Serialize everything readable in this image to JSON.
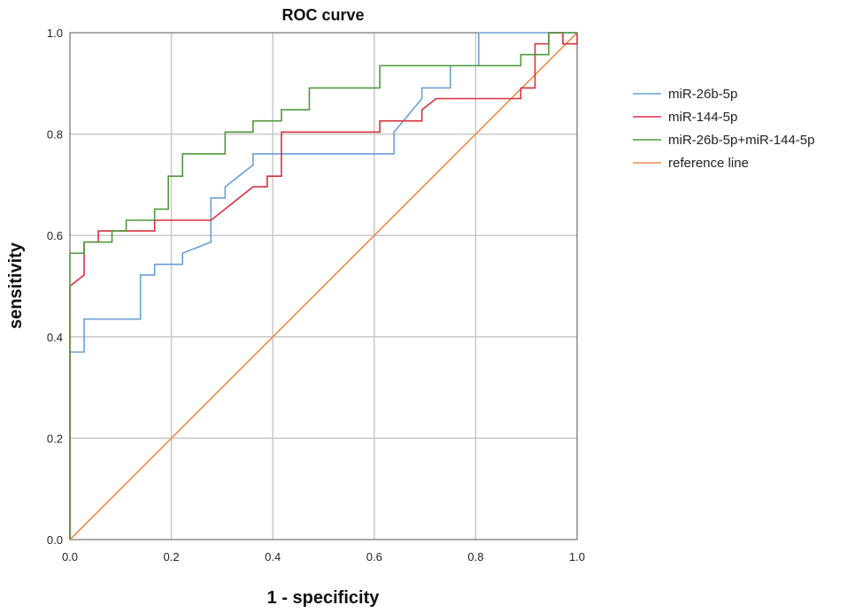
{
  "chart_data": {
    "type": "line",
    "title": "ROC curve",
    "xlabel": "1 - specificity",
    "ylabel": "sensitivity",
    "xlim": [
      0,
      1
    ],
    "ylim": [
      0,
      1
    ],
    "grid": true,
    "legend_position": "right",
    "x_ticks": [
      "0.0",
      "0.2",
      "0.4",
      "0.6",
      "0.8",
      "1.0"
    ],
    "y_ticks": [
      "0.0",
      "0.2",
      "0.4",
      "0.6",
      "0.8",
      "1.0"
    ],
    "series": [
      {
        "name": "miR-26b-5p",
        "color": "#6a9fd8",
        "points": [
          [
            0,
            0
          ],
          [
            0,
            0.37
          ],
          [
            0.028,
            0.37
          ],
          [
            0.028,
            0.435
          ],
          [
            0.139,
            0.435
          ],
          [
            0.139,
            0.522
          ],
          [
            0.167,
            0.522
          ],
          [
            0.167,
            0.543
          ],
          [
            0.222,
            0.543
          ],
          [
            0.222,
            0.565
          ],
          [
            0.278,
            0.587
          ],
          [
            0.278,
            0.674
          ],
          [
            0.306,
            0.674
          ],
          [
            0.306,
            0.696
          ],
          [
            0.361,
            0.739
          ],
          [
            0.361,
            0.761
          ],
          [
            0.639,
            0.761
          ],
          [
            0.639,
            0.804
          ],
          [
            0.694,
            0.87
          ],
          [
            0.694,
            0.891
          ],
          [
            0.75,
            0.891
          ],
          [
            0.75,
            0.935
          ],
          [
            0.806,
            0.935
          ],
          [
            0.806,
            1.0
          ],
          [
            1.0,
            1.0
          ]
        ]
      },
      {
        "name": "miR-144-5p",
        "color": "#d8303d",
        "points": [
          [
            0,
            0
          ],
          [
            0,
            0.5
          ],
          [
            0.028,
            0.522
          ],
          [
            0.028,
            0.587
          ],
          [
            0.056,
            0.587
          ],
          [
            0.056,
            0.609
          ],
          [
            0.167,
            0.609
          ],
          [
            0.167,
            0.63
          ],
          [
            0.278,
            0.63
          ],
          [
            0.361,
            0.696
          ],
          [
            0.389,
            0.696
          ],
          [
            0.389,
            0.717
          ],
          [
            0.417,
            0.717
          ],
          [
            0.417,
            0.804
          ],
          [
            0.611,
            0.804
          ],
          [
            0.611,
            0.826
          ],
          [
            0.694,
            0.826
          ],
          [
            0.694,
            0.848
          ],
          [
            0.722,
            0.87
          ],
          [
            0.889,
            0.87
          ],
          [
            0.889,
            0.891
          ],
          [
            0.917,
            0.891
          ],
          [
            0.917,
            0.978
          ],
          [
            0.944,
            0.978
          ],
          [
            0.944,
            1.0
          ],
          [
            0.972,
            1.0
          ],
          [
            0.972,
            0.978
          ],
          [
            1.0,
            0.978
          ],
          [
            1.0,
            1.0
          ]
        ]
      },
      {
        "name": "miR-26b-5p+miR-144-5p",
        "color": "#4f9a3c",
        "points": [
          [
            0,
            0
          ],
          [
            0,
            0.565
          ],
          [
            0.028,
            0.565
          ],
          [
            0.028,
            0.587
          ],
          [
            0.083,
            0.587
          ],
          [
            0.083,
            0.609
          ],
          [
            0.111,
            0.609
          ],
          [
            0.111,
            0.63
          ],
          [
            0.167,
            0.63
          ],
          [
            0.167,
            0.652
          ],
          [
            0.194,
            0.652
          ],
          [
            0.194,
            0.717
          ],
          [
            0.222,
            0.717
          ],
          [
            0.222,
            0.761
          ],
          [
            0.306,
            0.761
          ],
          [
            0.306,
            0.804
          ],
          [
            0.361,
            0.804
          ],
          [
            0.361,
            0.826
          ],
          [
            0.417,
            0.826
          ],
          [
            0.417,
            0.848
          ],
          [
            0.472,
            0.848
          ],
          [
            0.472,
            0.891
          ],
          [
            0.611,
            0.891
          ],
          [
            0.611,
            0.935
          ],
          [
            0.889,
            0.935
          ],
          [
            0.889,
            0.957
          ],
          [
            0.944,
            0.957
          ],
          [
            0.944,
            1.0
          ],
          [
            1.0,
            1.0
          ]
        ]
      },
      {
        "name": "reference line",
        "color": "#f08a4b",
        "points": [
          [
            0,
            0
          ],
          [
            1,
            1
          ]
        ]
      }
    ]
  }
}
